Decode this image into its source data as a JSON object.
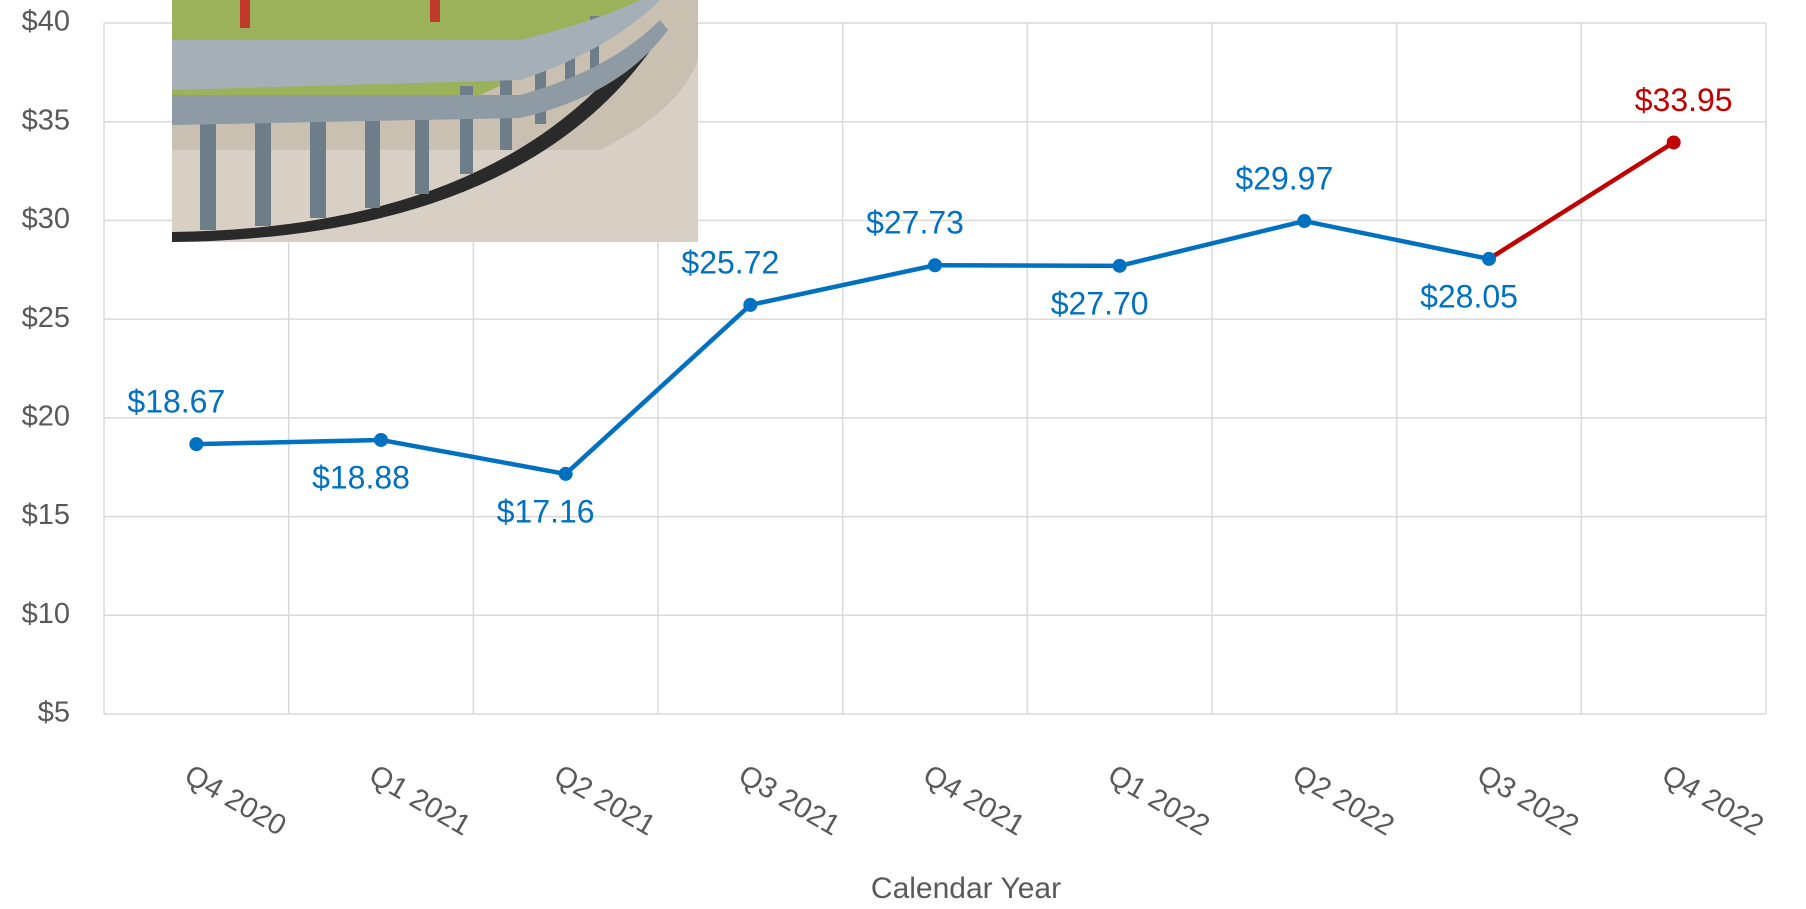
{
  "chart_data": {
    "type": "line",
    "x_label": "Calendar Year",
    "categories": [
      "Q4 2020",
      "Q1 2021",
      "Q2 2021",
      "Q3 2021",
      "Q4 2021",
      "Q1 2022",
      "Q2 2022",
      "Q3 2022",
      "Q4 2022"
    ],
    "values": [
      18.67,
      18.88,
      17.16,
      25.72,
      27.73,
      27.7,
      29.97,
      28.05,
      33.95
    ],
    "value_labels": [
      "$18.67",
      "$18.88",
      "$17.16",
      "$25.72",
      "$27.73",
      "$27.70",
      "$29.97",
      "$28.05",
      "$33.95"
    ],
    "point_colors": [
      "#0070c0",
      "#0070c0",
      "#0070c0",
      "#0070c0",
      "#0070c0",
      "#0070c0",
      "#0070c0",
      "#0070c0",
      "#c00000"
    ],
    "ylim": [
      5,
      40
    ],
    "yticks": [
      {
        "value": 5,
        "label": "$5"
      },
      {
        "value": 10,
        "label": "$10"
      },
      {
        "value": 15,
        "label": "$15"
      },
      {
        "value": 20,
        "label": "$20"
      },
      {
        "value": 25,
        "label": "$25"
      },
      {
        "value": 30,
        "label": "$30"
      },
      {
        "value": 35,
        "label": "$35"
      },
      {
        "value": 40,
        "label": "$40"
      }
    ],
    "grid": true
  }
}
